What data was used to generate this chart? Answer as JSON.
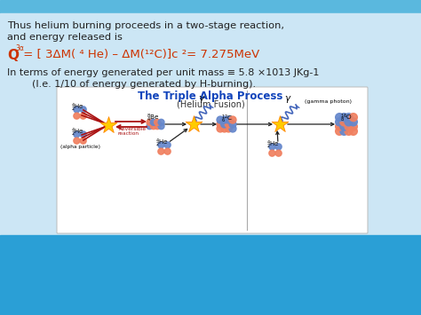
{
  "bg_top_bar": "#5ab8de",
  "bg_main": "#c8e6f4",
  "bg_bottom": "#2a9fd6",
  "diagram_bg": "#ffffff",
  "text_dark": "#222222",
  "text_red": "#cc3300",
  "text_blue": "#1144bb",
  "line1": "Thus helium burning proceeds in a two-stage reaction,",
  "line2": "and energy released is",
  "formula_q": "Q",
  "formula_sub": "3α",
  "formula_rest": " = [ 3ΔM( ⁴ He) – ΔM(¹²C)]c ²= 7.275MeV",
  "body1": "In terms of energy generated per unit mass ≡ 5.8 ×1013 JKg-1",
  "body2": "        (I.e. 1/10 of energy generated by H-burning).",
  "diag_title": "The Triple Alpha Process",
  "diag_sub": "(Helium Fusion)",
  "diag_label_gamma": "(gamma photon)",
  "diag_label_alpha": "(alpha particle)",
  "diag_label_rev": "Reversible\nreaction",
  "proton_color": "#f08060",
  "neutron_color": "#6688cc",
  "arrow_color": "#222222",
  "red_color": "#aa1111",
  "gamma_color": "#4466bb",
  "star_color": "#ffcc00",
  "star_edge": "#ff8800"
}
